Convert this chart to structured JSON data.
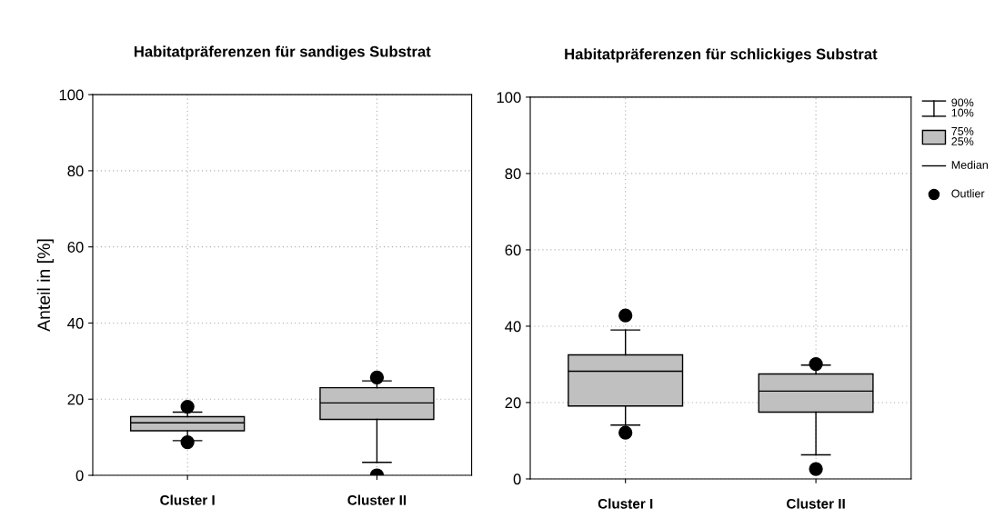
{
  "chart_data": [
    {
      "type": "box",
      "title": "Habitatpräferenzen für sandiges Substrat",
      "ylabel": "Anteil in [%]",
      "categories": [
        "Cluster I",
        "Cluster II"
      ],
      "ylim": [
        0,
        100
      ],
      "yticks": [
        0,
        20,
        40,
        60,
        80,
        100
      ],
      "grid": true,
      "color": "#c0c0c0",
      "boxes": [
        {
          "low": 9.1,
          "q1": 11.7,
          "median": 13.8,
          "q3": 15.4,
          "high": 16.6,
          "outliers": [
            18.0,
            8.7
          ]
        },
        {
          "low": 3.4,
          "q1": 14.7,
          "median": 19.0,
          "q3": 23.0,
          "high": 24.8,
          "outliers": [
            25.7,
            0
          ]
        }
      ]
    },
    {
      "type": "box",
      "title": "Habitatpräferenzen für schlickiges Substrat",
      "categories": [
        "Cluster I",
        "Cluster II"
      ],
      "ylim": [
        0,
        100
      ],
      "yticks": [
        0,
        20,
        40,
        60,
        80,
        100
      ],
      "grid": true,
      "color": "#c0c0c0",
      "annotations": [
        "90%\n10%",
        "75%\n25%",
        "Median",
        "Outlier"
      ],
      "boxes": [
        {
          "low": 14.1,
          "q1": 19.1,
          "median": 28.2,
          "q3": 32.5,
          "high": 39.0,
          "outliers": [
            42.8,
            12.1
          ]
        },
        {
          "low": 6.3,
          "q1": 17.5,
          "median": 23.0,
          "q3": 27.5,
          "high": 29.8,
          "outliers": [
            30.1,
            2.6
          ]
        }
      ]
    }
  ]
}
